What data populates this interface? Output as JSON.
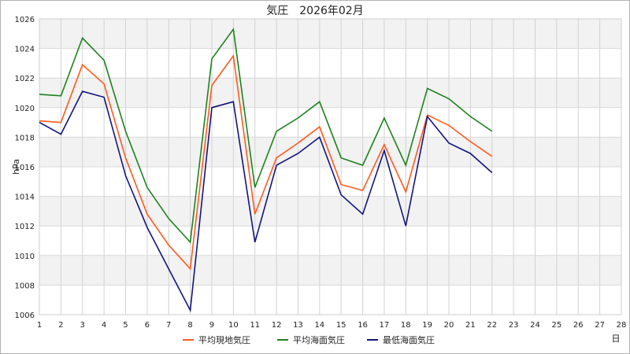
{
  "chart_data": {
    "type": "line",
    "title": "気圧　2026年02月",
    "ylabel": "hPa",
    "xunit": "日",
    "xlim": [
      1,
      28
    ],
    "ylim": [
      1006,
      1026
    ],
    "ytick_step": 2,
    "grid": true,
    "legend_position": "bottom",
    "x": [
      1,
      2,
      3,
      4,
      5,
      6,
      7,
      8,
      9,
      10,
      11,
      12,
      13,
      14,
      15,
      16,
      17,
      18,
      19,
      20,
      21,
      22
    ],
    "series": [
      {
        "name": "平均現地気圧",
        "color": "#ff5a1e",
        "values": [
          1019.1,
          1019.0,
          1022.9,
          1021.6,
          1016.6,
          1012.8,
          1010.7,
          1009.1,
          1021.5,
          1023.5,
          1012.8,
          1016.6,
          1017.6,
          1018.7,
          1014.8,
          1014.4,
          1017.5,
          1014.3,
          1019.5,
          1018.8,
          1017.7,
          1016.7
        ]
      },
      {
        "name": "平均海面気圧",
        "color": "#1e821e",
        "values": [
          1020.9,
          1020.8,
          1024.7,
          1023.2,
          1018.4,
          1014.6,
          1012.5,
          1010.9,
          1023.3,
          1025.3,
          1014.6,
          1018.4,
          1019.3,
          1020.4,
          1016.6,
          1016.1,
          1019.3,
          1016.1,
          1021.3,
          1020.6,
          1019.4,
          1018.4
        ]
      },
      {
        "name": "最低海面気圧",
        "color": "#14147e",
        "values": [
          1019.0,
          1018.2,
          1021.1,
          1020.7,
          1015.4,
          1011.9,
          1009.1,
          1006.3,
          1020.0,
          1020.4,
          1010.9,
          1016.1,
          1016.9,
          1018.0,
          1014.1,
          1012.8,
          1017.1,
          1012.0,
          1019.4,
          1017.6,
          1016.9,
          1015.6
        ]
      }
    ]
  }
}
